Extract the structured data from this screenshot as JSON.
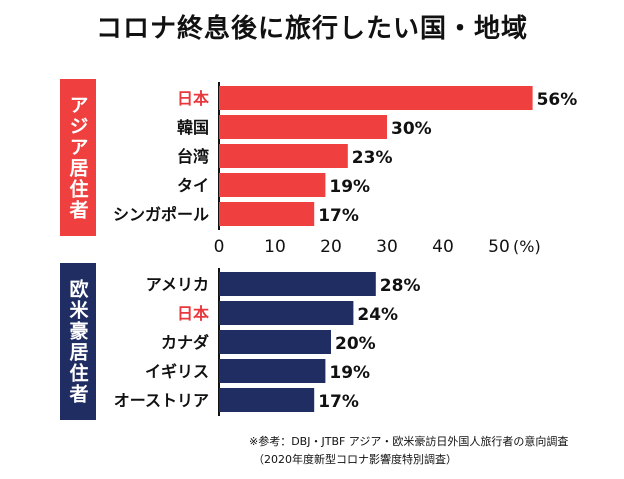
{
  "title": "コロナ終息後に旅行したい国・地域",
  "colors": {
    "asia": "#ef3f3f",
    "west": "#1f2d63",
    "highlight_text": "#e8373d",
    "text": "#111111"
  },
  "chart_data": [
    {
      "type": "bar",
      "orientation": "horizontal",
      "group_label": "アジア居住者",
      "categories": [
        "日本",
        "韓国",
        "台湾",
        "タイ",
        "シンガポール"
      ],
      "highlight_categories": [
        "日本"
      ],
      "values": [
        56,
        30,
        23,
        19,
        17
      ],
      "value_labels": [
        "56%",
        "30%",
        "23%",
        "19%",
        "17%"
      ],
      "xlim": [
        0,
        56
      ],
      "x_ticks": [
        "0",
        "10",
        "20",
        "30",
        "40",
        "50"
      ],
      "x_unit_label": "(%)",
      "grid": false
    },
    {
      "type": "bar",
      "orientation": "horizontal",
      "group_label": "欧米豪居住者",
      "categories": [
        "アメリカ",
        "日本",
        "カナダ",
        "イギリス",
        "オーストリア"
      ],
      "highlight_categories": [
        "日本"
      ],
      "values": [
        28,
        24,
        20,
        19,
        17
      ],
      "value_labels": [
        "28%",
        "24%",
        "20%",
        "19%",
        "17%"
      ],
      "xlim": [
        0,
        56
      ],
      "grid": false
    }
  ],
  "source": {
    "line1": "※参考：DBJ・JTBF アジア・欧米豪訪日外国人旅行者の意向調査",
    "line2": "（2020年度新型コロナ影響度特別調査）"
  }
}
